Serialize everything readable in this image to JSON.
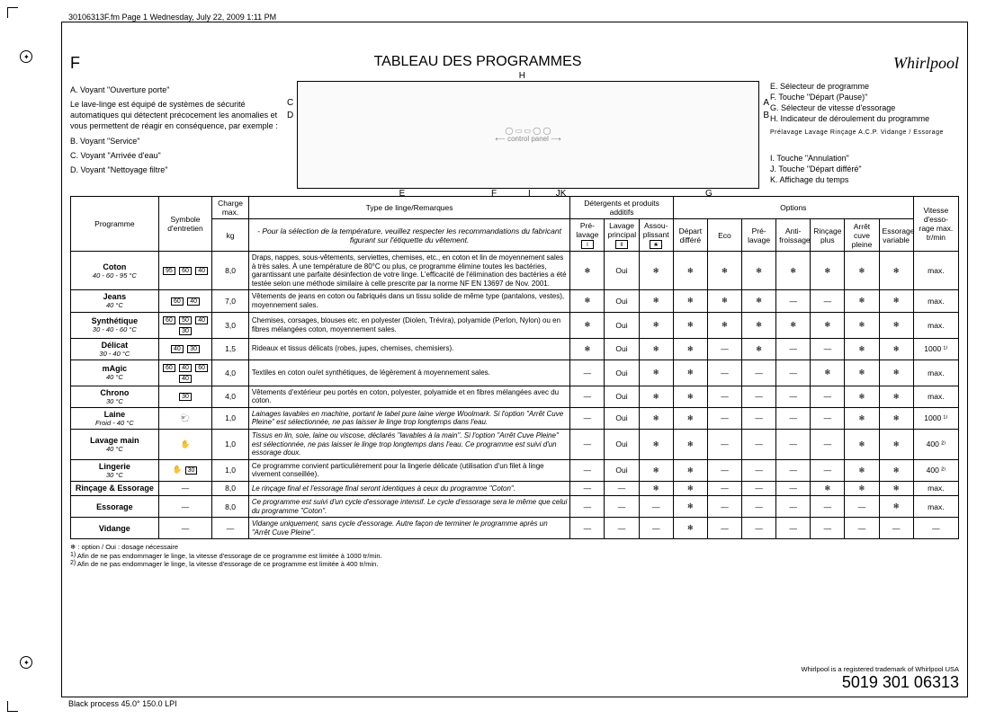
{
  "meta": {
    "header": "30106313F.fm  Page 1  Wednesday, July 22, 2009  1:11 PM",
    "footer": "Black process 45.0° 150.0 LPI"
  },
  "page": {
    "side_letter": "F",
    "title": "TABLEAU DES PROGRAMMES",
    "brand": "Whirlpool"
  },
  "legend_left": {
    "a": "A.  Voyant \"Ouverture porte\"",
    "intro": "Le lave-linge est équipé de systèmes de sécurité automatiques qui détectent précocement les anomalies et vous permettent de réagir en conséquence, par exemple :",
    "b": "B.  Voyant \"Service\"",
    "c": "C.  Voyant \"Arrivée d'eau\"",
    "d": "D.  Voyant \"Nettoyage filtre\""
  },
  "legend_right": {
    "e": "E.  Sélecteur de programme",
    "f": "F.  Touche \"Départ (Pause)\"",
    "g": "G.  Sélecteur de vitesse d'essorage",
    "h": "H.  Indicateur de déroulement du programme",
    "i": "I.   Touche \"Annulation\"",
    "j": "J.   Touche \"Départ différé\"",
    "k": "K.  Affichage du temps"
  },
  "panel_labels": {
    "top": "H",
    "c": "C",
    "d": "D",
    "a": "A",
    "b": "B",
    "e": "E",
    "f": "F",
    "i": "I",
    "j": "J",
    "k": "K",
    "g": "G"
  },
  "progress_strip": "Prélavage   Lavage   Rinçage   A.C.P.   Vidange / Essorage",
  "table": {
    "headers": {
      "programme": "Programme",
      "symbole": "Symbole d'entretien",
      "charge": "Charge max.",
      "charge_unit": "kg",
      "type_group": "Type de linge/Remarques",
      "type_note": "- Pour la sélection de la température, veuillez respecter les recommandations du fabricant figurant sur l'étiquette du vêtement.",
      "detergents_group": "Détergents et produits additifs",
      "pre_lavage": "Pré-lavage",
      "lavage_principal": "Lavage principal",
      "assouplissant": "Assou-plissant",
      "options_group": "Options",
      "depart_differe": "Départ différé",
      "eco": "Eco",
      "opt_prelavage": "Pré-lavage",
      "anti_froissage": "Anti-froissage",
      "rincage_plus": "Rinçage plus",
      "arret_cuve": "Arrêt cuve pleine",
      "essorage_var": "Essorage variable",
      "vitesse": "Vitesse d'esso-rage max. tr/min"
    },
    "rows": [
      {
        "prog": "Coton",
        "sub": "40 - 60 - 95 °C",
        "sym": [
          "95",
          "60",
          "40"
        ],
        "charge": "8,0",
        "remarks": "Draps, nappes, sous-vêtements, serviettes, chemises, etc., en coton et lin de moyennement sales à très sales.\nÀ une température de 80°C ou plus, ce programme élimine toutes les bactéries, garantissant une parfaite désinfection de votre linge. L'efficacité de l'élimination des bactéries a été testée selon une méthode similaire à celle prescrite par la norme NF EN 13697 de Nov. 2001.",
        "d": [
          "❄",
          "Oui",
          "❄"
        ],
        "o": [
          "❄",
          "❄",
          "❄",
          "❄",
          "❄",
          "❄",
          "❄"
        ],
        "speed": "max."
      },
      {
        "prog": "Jeans",
        "sub": "40 °C",
        "sym": [
          "60",
          "40"
        ],
        "charge": "7,0",
        "remarks": "Vêtements de jeans en coton ou fabriqués dans un tissu solide de même type (pantalons, vestes), moyennement sales.",
        "d": [
          "❄",
          "Oui",
          "❄"
        ],
        "o": [
          "❄",
          "❄",
          "❄",
          "—",
          "—",
          "❄",
          "❄"
        ],
        "speed": "max."
      },
      {
        "prog": "Synthétique",
        "sub": "30 - 40 - 60 °C",
        "sym": [
          "60",
          "50",
          "40",
          "30"
        ],
        "charge": "3,0",
        "remarks": "Chemises, corsages, blouses etc. en polyester (Diolen, Trévira), polyamide (Perlon, Nylon) ou en fibres mélangées coton, moyennement sales.",
        "d": [
          "❄",
          "Oui",
          "❄"
        ],
        "o": [
          "❄",
          "❄",
          "❄",
          "❄",
          "❄",
          "❄",
          "❄"
        ],
        "speed": "max."
      },
      {
        "prog": "Délicat",
        "sub": "30 - 40 °C",
        "sym": [
          "40",
          "30"
        ],
        "charge": "1,5",
        "remarks": "Rideaux et tissus délicats (robes, jupes, chemises, chemisiers).",
        "d": [
          "❄",
          "Oui",
          "❄"
        ],
        "o": [
          "❄",
          "—",
          "❄",
          "—",
          "—",
          "❄",
          "❄"
        ],
        "speed": "1000 ¹⁾"
      },
      {
        "prog": "mAgic",
        "sub": "40 °C",
        "sym": [
          "60",
          "40",
          "60",
          "40"
        ],
        "charge": "4,0",
        "remarks": "Textiles en coton ou/et synthétiques, de légèrement à moyennement sales.",
        "d": [
          "—",
          "Oui",
          "❄"
        ],
        "o": [
          "❄",
          "—",
          "—",
          "—",
          "❄",
          "❄",
          "❄"
        ],
        "speed": "max."
      },
      {
        "prog": "Chrono",
        "sub": "30 °C",
        "sym": [
          "30"
        ],
        "charge": "4,0",
        "remarks": "Vêtements d'extérieur peu portés en coton, polyester, polyamide et en fibres mélangées avec du coton.",
        "d": [
          "—",
          "Oui",
          "❄"
        ],
        "o": [
          "❄",
          "—",
          "—",
          "—",
          "—",
          "❄",
          "❄"
        ],
        "speed": "max."
      },
      {
        "prog": "Laine",
        "sub": "Froid - 40 °C",
        "sym": [
          "wool"
        ],
        "charge": "1,0",
        "remarks": "Lainages lavables en machine, portant le label pure laine vierge Woolmark.\nSi l'option \"Arrêt Cuve Pleine\" est sélectionnée, ne pas laisser le linge trop longtemps dans l'eau.",
        "italic": true,
        "d": [
          "—",
          "Oui",
          "❄"
        ],
        "o": [
          "❄",
          "—",
          "—",
          "—",
          "—",
          "❄",
          "❄"
        ],
        "speed": "1000 ¹⁾"
      },
      {
        "prog": "Lavage main",
        "sub": "40 °C",
        "sym": [
          "hand"
        ],
        "charge": "1,0",
        "remarks": "Tissus en lin, soie, laine ou viscose, déclarés \"lavables à la main\".\nSi l'option \"Arrêt Cuve Pleine\" est sélectionnée, ne pas laisser le linge trop longtemps dans l'eau. Ce programme est suivi d'un essorage doux.",
        "italic": true,
        "d": [
          "—",
          "Oui",
          "❄"
        ],
        "o": [
          "❄",
          "—",
          "—",
          "—",
          "—",
          "❄",
          "❄"
        ],
        "speed": "400 ²⁾"
      },
      {
        "prog": "Lingerie",
        "sub": "30 °C",
        "sym": [
          "hand",
          "30"
        ],
        "charge": "1,0",
        "remarks": "Ce programme convient particulièrement pour la lingerie délicate (utilisation d'un filet à linge vivement conseillée).",
        "d": [
          "—",
          "Oui",
          "❄"
        ],
        "o": [
          "❄",
          "—",
          "—",
          "—",
          "—",
          "❄",
          "❄"
        ],
        "speed": "400 ²⁾"
      },
      {
        "prog": "Rinçage & Essorage",
        "sub": "",
        "sym": [
          "—"
        ],
        "charge": "8,0",
        "remarks": "Le rinçage final et l'essorage final seront identiques à ceux du programme \"Coton\".",
        "italic": true,
        "d": [
          "—",
          "—",
          "❄"
        ],
        "o": [
          "❄",
          "—",
          "—",
          "—",
          "❄",
          "❄",
          "❄"
        ],
        "speed": "max."
      },
      {
        "prog": "Essorage",
        "sub": "",
        "sym": [
          "—"
        ],
        "charge": "8,0",
        "remarks": "Ce programme est suivi d'un cycle d'essorage intensif. Le cycle d'essorage sera le même que celui du programme \"Coton\".",
        "italic": true,
        "d": [
          "—",
          "—",
          "—"
        ],
        "o": [
          "❄",
          "—",
          "—",
          "—",
          "—",
          "—",
          "❄"
        ],
        "speed": "max."
      },
      {
        "prog": "Vidange",
        "sub": "",
        "sym": [
          "—"
        ],
        "charge": "—",
        "remarks": "Vidange uniquement, sans cycle d'essorage. Autre façon de terminer le programme après un \"Arrêt Cuve Pleine\".",
        "italic": true,
        "d": [
          "—",
          "—",
          "—"
        ],
        "o": [
          "❄",
          "—",
          "—",
          "—",
          "—",
          "—",
          "—"
        ],
        "speed": "—"
      }
    ]
  },
  "footnotes": {
    "star": "❄ : option / Oui : dosage nécessaire",
    "n1": "Afin de ne pas endommager le linge, la vitesse d'essorage de ce programme est limitée à 1000 tr/min.",
    "n2": "Afin de ne pas endommager le linge, la vitesse d'essorage de ce programme est limitée à 400 tr/min."
  },
  "docnum": {
    "reg": "Whirlpool is a registered trademark of Whirlpool USA",
    "num": "5019 301 06313"
  }
}
